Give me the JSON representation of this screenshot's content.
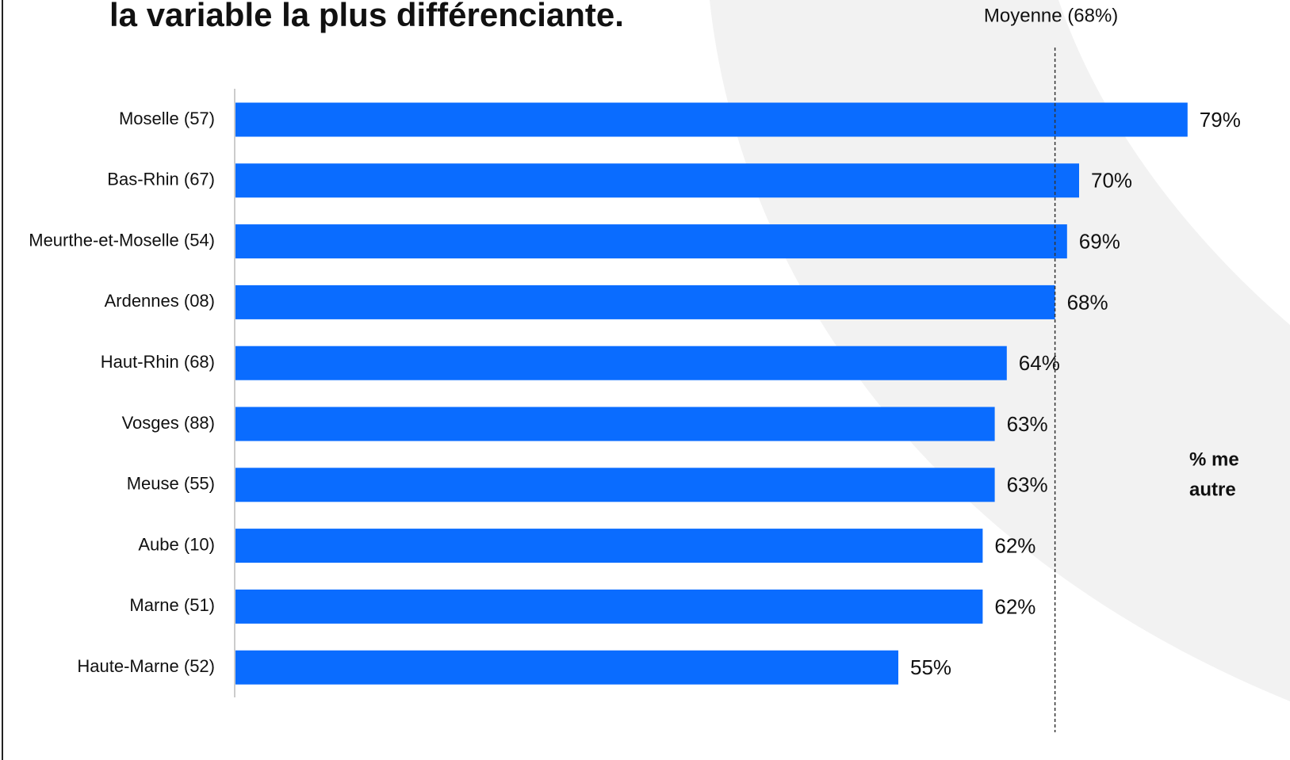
{
  "chart_data": {
    "type": "hbar",
    "title": "la variable la plus différenciante.",
    "categories": [
      "Moselle (57)",
      "Bas-Rhin (67)",
      "Meurthe-et-Moselle (54)",
      "Ardennes (08)",
      "Haut-Rhin (68)",
      "Vosges (88)",
      "Meuse (55)",
      "Aube (10)",
      "Marne (51)",
      "Haute-Marne (52)"
    ],
    "values": [
      79,
      70,
      69,
      68,
      64,
      63,
      63,
      62,
      62,
      55
    ],
    "value_labels": [
      "79%",
      "70%",
      "69%",
      "68%",
      "64%",
      "63%",
      "63%",
      "62%",
      "62%",
      "55%"
    ],
    "color": "#0a6cff",
    "xlim": [
      0,
      100
    ],
    "reference_line": {
      "value": 68,
      "label": "Moyenne (68%)"
    },
    "annotations": [
      "% me",
      "autre"
    ]
  }
}
